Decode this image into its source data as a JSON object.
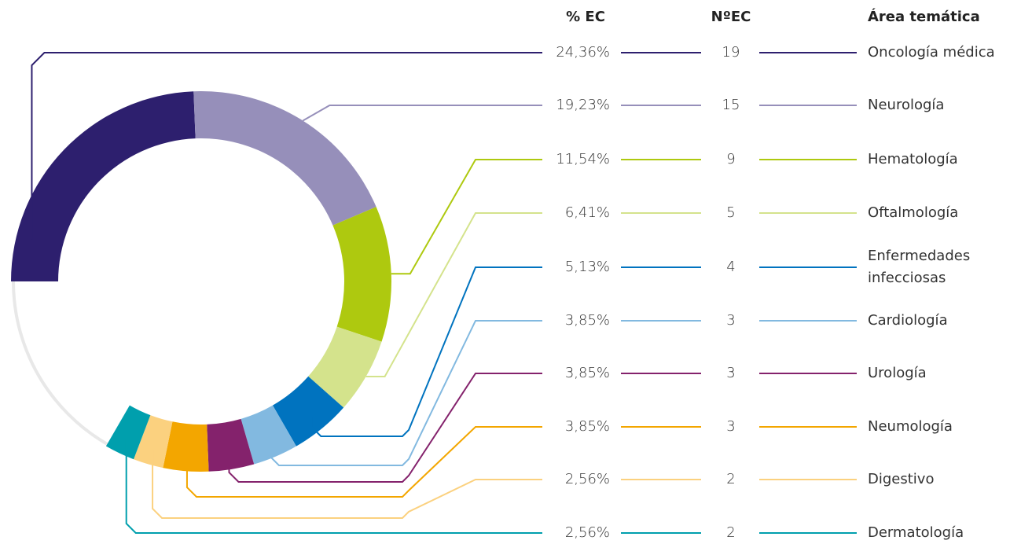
{
  "chart_data": {
    "type": "donut",
    "column_headers": [
      "% EC",
      "NºEC",
      "Área temática"
    ],
    "categories": [
      "Oncología médica",
      "Neurología",
      "Hematología",
      "Oftalmología",
      "Enfermedades\ninfecciosas",
      "Cardiología",
      "Urología",
      "Neumología",
      "Digestivo",
      "Dermatología"
    ],
    "values": [
      24.36,
      19.23,
      11.54,
      6.41,
      5.13,
      3.85,
      3.85,
      3.85,
      2.56,
      2.56
    ],
    "value_labels": [
      "24,36%",
      "19,23%",
      "11,54%",
      "6,41%",
      "5,13%",
      "3,85%",
      "3,85%",
      "3,85%",
      "2,56%",
      "2,56%"
    ],
    "counts": [
      19,
      15,
      9,
      5,
      4,
      3,
      3,
      3,
      2,
      2
    ],
    "colors": [
      "#2d1f6e",
      "#968fba",
      "#aec90f",
      "#d4e38c",
      "#0073bf",
      "#82b9e0",
      "#84226c",
      "#f3a600",
      "#fbd17f",
      "#009fad"
    ],
    "track_color": "#e8e8e8"
  }
}
